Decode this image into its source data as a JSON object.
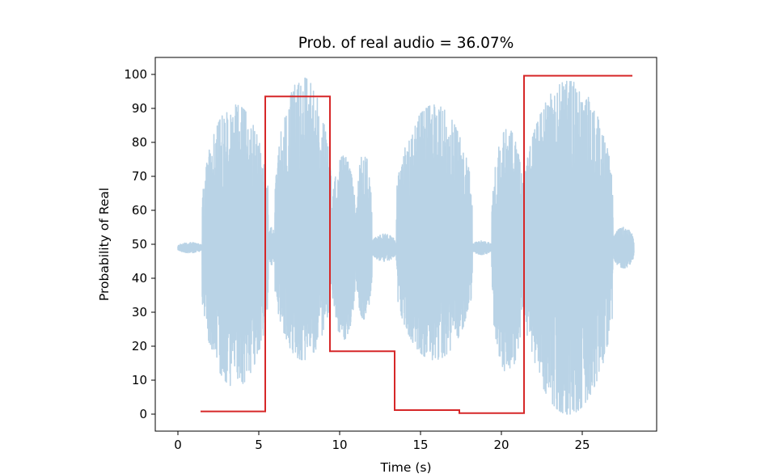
{
  "chart_data": {
    "type": "line",
    "title": "Prob. of real audio = 36.07%",
    "xlabel": "Time (s)",
    "ylabel": "Probability of Real",
    "xlim": [
      -1.4,
      29.6
    ],
    "ylim": [
      -5,
      105
    ],
    "xticks": [
      0,
      5,
      10,
      15,
      20,
      25
    ],
    "yticks": [
      0,
      10,
      20,
      30,
      40,
      50,
      60,
      70,
      80,
      90,
      100
    ],
    "grid": false,
    "legend": "none",
    "series": [
      {
        "name": "audio waveform",
        "color": "#b9d3e6",
        "style": "dense oscillation around 49",
        "segments": [
          {
            "x": [
              0,
              1.5
            ],
            "low": 47.5,
            "high": 50.5
          },
          {
            "x": [
              1.5,
              5.6
            ],
            "low": 8,
            "high": 91
          },
          {
            "x": [
              5.6,
              6.0
            ],
            "low": 44,
            "high": 55
          },
          {
            "x": [
              6.0,
              9.5
            ],
            "low": 16,
            "high": 99
          },
          {
            "x": [
              9.5,
              11.0
            ],
            "low": 22,
            "high": 76
          },
          {
            "x": [
              11.0,
              12.0
            ],
            "low": 28,
            "high": 77
          },
          {
            "x": [
              12.0,
              13.5
            ],
            "low": 45,
            "high": 53
          },
          {
            "x": [
              13.5,
              18.2
            ],
            "low": 16,
            "high": 91
          },
          {
            "x": [
              18.2,
              19.4
            ],
            "low": 47,
            "high": 51
          },
          {
            "x": [
              19.4,
              21.4
            ],
            "low": 12,
            "high": 84
          },
          {
            "x": [
              21.4,
              26.9
            ],
            "low": 0,
            "high": 98
          },
          {
            "x": [
              26.9,
              28.2
            ],
            "low": 43,
            "high": 55
          }
        ]
      },
      {
        "name": "probability of real",
        "color": "#d62728",
        "style": "step",
        "points": [
          {
            "x": 1.4,
            "y": 0.8
          },
          {
            "x": 5.4,
            "y": 0.8
          },
          {
            "x": 5.4,
            "y": 93.5
          },
          {
            "x": 9.4,
            "y": 93.5
          },
          {
            "x": 9.4,
            "y": 18.5
          },
          {
            "x": 13.4,
            "y": 18.5
          },
          {
            "x": 13.4,
            "y": 1.2
          },
          {
            "x": 17.4,
            "y": 1.2
          },
          {
            "x": 17.4,
            "y": 0.3
          },
          {
            "x": 21.4,
            "y": 0.3
          },
          {
            "x": 21.4,
            "y": 99.6
          },
          {
            "x": 28.1,
            "y": 99.6
          }
        ]
      }
    ]
  }
}
